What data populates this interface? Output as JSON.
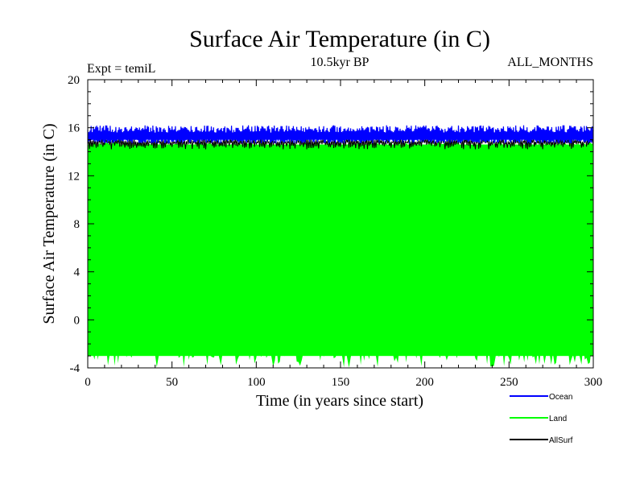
{
  "chart_data": {
    "type": "line",
    "title": "Surface Air Temperature (in C)",
    "subtitle_left": "Expt = temiL",
    "subtitle_center": "10.5kyr BP",
    "subtitle_right": "ALL_MONTHS",
    "xlabel": "Time (in years since start)",
    "ylabel": "Surface Air Temperature (in C)",
    "xlim": [
      0,
      300
    ],
    "ylim": [
      -4,
      20
    ],
    "xticks": [
      0,
      50,
      100,
      150,
      200,
      250,
      300
    ],
    "xtick_labels": [
      "0",
      "50",
      "100",
      "150",
      "200",
      "250",
      "300"
    ],
    "yticks": [
      -4,
      0,
      4,
      8,
      12,
      16,
      20
    ],
    "ytick_labels": [
      "-4",
      "0",
      "4",
      "8",
      "12",
      "16",
      "20"
    ],
    "grid": false,
    "legend_position": "bottom-right, outside plot",
    "series": [
      {
        "name": "Land",
        "color": "#00ff00",
        "description_of_values": "monthly, oscillates seasonally",
        "band_min": -3.0,
        "band_max": 14.6,
        "trough_low": -4.0,
        "trough_high": -2.2,
        "peak_low": 14.3,
        "peak_high": 14.8
      },
      {
        "name": "AllSurf",
        "color": "#000000",
        "band_min": 14.8,
        "band_max": 15.2,
        "dip_low": 14.2,
        "dip_high": 14.8
      },
      {
        "name": "Ocean",
        "color": "#0000ff",
        "band_min": 14.7,
        "band_max": 15.9,
        "peak_low": 15.6,
        "peak_high": 16.2
      }
    ]
  }
}
